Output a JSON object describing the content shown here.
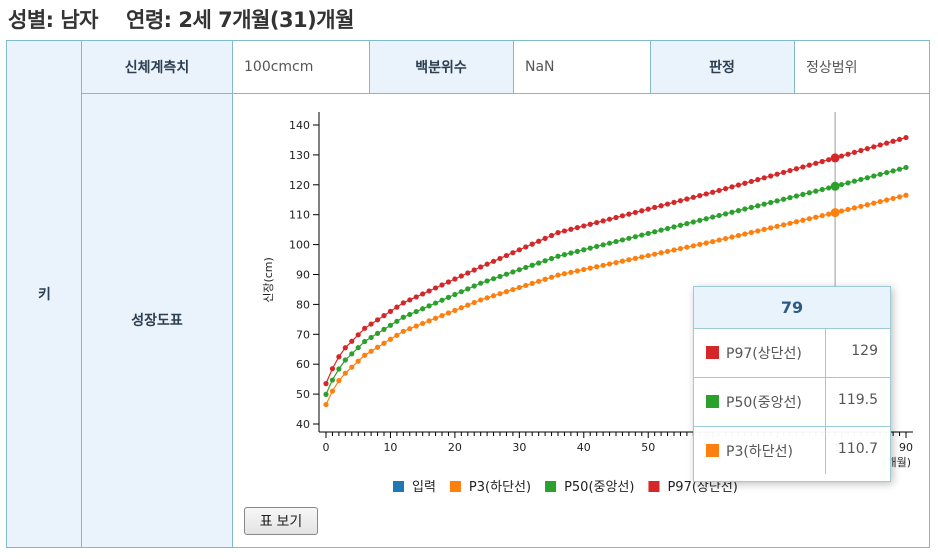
{
  "header": {
    "gender": "성별: 남자",
    "age": "연령: 2세 7개월(31)개월"
  },
  "table": {
    "row_label": "키",
    "measure_label": "신체계측치",
    "measure_value": "100cmcm",
    "percentile_label": "백분위수",
    "percentile_value": "NaN",
    "judgement_label": "판정",
    "judgement_value": "정상범위",
    "chart_label": "성장도표"
  },
  "button": {
    "label": "표 보기"
  },
  "tooltip": {
    "title": "79",
    "rows": [
      {
        "name": "P97(상단선)",
        "value": "129",
        "color": "#d62728"
      },
      {
        "name": "P50(중앙선)",
        "value": "119.5",
        "color": "#2ca02c"
      },
      {
        "name": "P3(하단선)",
        "value": "110.7",
        "color": "#ff7f0e"
      }
    ]
  },
  "chart_data": {
    "type": "line",
    "ylabel": "신장(cm)",
    "xlabel": "(개월)",
    "xlim": [
      0,
      90
    ],
    "ylim": [
      40,
      140
    ],
    "x_ticks": [
      0,
      10,
      20,
      30,
      40,
      50,
      60,
      70,
      80,
      90
    ],
    "y_ticks": [
      40,
      50,
      60,
      70,
      80,
      90,
      100,
      110,
      120,
      130,
      140
    ],
    "hover_x": 79,
    "legend": [
      {
        "name": "입력",
        "color": "#1f77b4"
      },
      {
        "name": "P3(하단선)",
        "color": "#ff7f0e"
      },
      {
        "name": "P50(중앙선)",
        "color": "#2ca02c"
      },
      {
        "name": "P97(상단선)",
        "color": "#d62728"
      }
    ],
    "series": [
      {
        "name": "P3(하단선)",
        "color": "#ff7f0e",
        "x": [
          0,
          1,
          2,
          3,
          6,
          12,
          24,
          36,
          60,
          79,
          90
        ],
        "values": [
          46.5,
          51,
          54.5,
          57,
          63,
          71,
          81.5,
          89.8,
          101,
          110.7,
          116.5
        ]
      },
      {
        "name": "P50(중앙선)",
        "color": "#2ca02c",
        "x": [
          0,
          1,
          2,
          3,
          6,
          12,
          24,
          36,
          60,
          79,
          90
        ],
        "values": [
          49.9,
          54.7,
          58.4,
          61.4,
          67.6,
          75.7,
          87.1,
          96.1,
          109.2,
          119.5,
          125.8
        ]
      },
      {
        "name": "P97(상단선)",
        "color": "#d62728",
        "x": [
          0,
          1,
          2,
          3,
          6,
          12,
          24,
          36,
          60,
          79,
          90
        ],
        "values": [
          53.5,
          58.5,
          62.5,
          65.5,
          72,
          80.5,
          92.5,
          104,
          117.5,
          129,
          135.8
        ]
      }
    ]
  }
}
